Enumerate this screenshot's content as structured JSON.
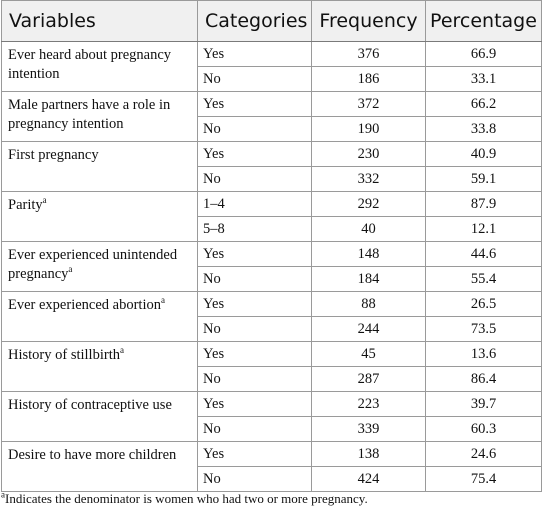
{
  "headers": [
    "Variables",
    "Categories",
    "Frequency",
    "Percentage"
  ],
  "rows": [
    {
      "variable": "Ever heard about pregnancy intention",
      "sup": "",
      "categories": [
        {
          "category": "Yes",
          "frequency": "376",
          "percentage": "66.9"
        },
        {
          "category": "No",
          "frequency": "186",
          "percentage": "33.1"
        }
      ]
    },
    {
      "variable": "Male partners have a role in pregnancy intention",
      "sup": "",
      "categories": [
        {
          "category": "Yes",
          "frequency": "372",
          "percentage": "66.2"
        },
        {
          "category": "No",
          "frequency": "190",
          "percentage": "33.8"
        }
      ]
    },
    {
      "variable": "First pregnancy",
      "sup": "",
      "categories": [
        {
          "category": "Yes",
          "frequency": "230",
          "percentage": "40.9"
        },
        {
          "category": "No",
          "frequency": "332",
          "percentage": "59.1"
        }
      ]
    },
    {
      "variable": "Parity",
      "sup": "a",
      "categories": [
        {
          "category": "1–4",
          "frequency": "292",
          "percentage": "87.9"
        },
        {
          "category": "5–8",
          "frequency": "40",
          "percentage": "12.1"
        }
      ]
    },
    {
      "variable": "Ever experienced unintended pregnancy",
      "sup": "a",
      "categories": [
        {
          "category": "Yes",
          "frequency": "148",
          "percentage": "44.6"
        },
        {
          "category": "No",
          "frequency": "184",
          "percentage": "55.4"
        }
      ]
    },
    {
      "variable": "Ever experienced abortion",
      "sup": "a",
      "categories": [
        {
          "category": "Yes",
          "frequency": "88",
          "percentage": "26.5"
        },
        {
          "category": "No",
          "frequency": "244",
          "percentage": "73.5"
        }
      ]
    },
    {
      "variable": "History of stillbirth",
      "sup": "a",
      "categories": [
        {
          "category": "Yes",
          "frequency": "45",
          "percentage": "13.6"
        },
        {
          "category": "No",
          "frequency": "287",
          "percentage": "86.4"
        }
      ]
    },
    {
      "variable": "History of contraceptive use",
      "sup": "",
      "categories": [
        {
          "category": "Yes",
          "frequency": "223",
          "percentage": "39.7"
        },
        {
          "category": "No",
          "frequency": "339",
          "percentage": "60.3"
        }
      ]
    },
    {
      "variable": "Desire to have more children",
      "sup": "",
      "categories": [
        {
          "category": "Yes",
          "frequency": "138",
          "percentage": "24.6"
        },
        {
          "category": "No",
          "frequency": "424",
          "percentage": "75.4"
        }
      ]
    }
  ],
  "footnote": {
    "sup": "a",
    "text": "Indicates the denominator is women who had two or more pregnancy."
  }
}
